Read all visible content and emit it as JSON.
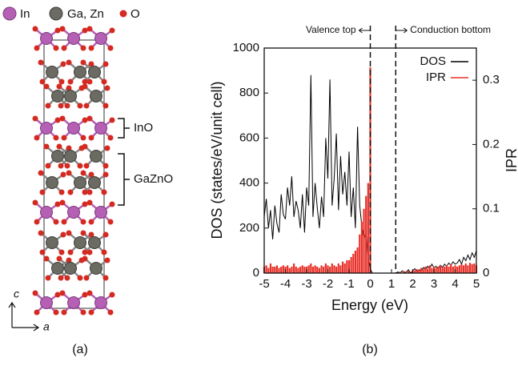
{
  "structure": {
    "legend": [
      "In",
      "Ga, Zn",
      "O"
    ],
    "labels": [
      "InO",
      "GaZnO"
    ],
    "axes": [
      "c",
      "a"
    ],
    "caption": "(a)"
  },
  "chart_data": {
    "type": "line",
    "caption": "(b)",
    "xlabel": "Energy (eV)",
    "ylabel": "DOS (states/eV/unit cell)",
    "y2label": "IPR",
    "x": [
      -5,
      -4.9,
      -4.8,
      -4.7,
      -4.6,
      -4.5,
      -4.4,
      -4.3,
      -4.2,
      -4.1,
      -4,
      -3.9,
      -3.8,
      -3.7,
      -3.6,
      -3.5,
      -3.4,
      -3.3,
      -3.2,
      -3.1,
      -3,
      -2.9,
      -2.8,
      -2.7,
      -2.6,
      -2.5,
      -2.4,
      -2.3,
      -2.2,
      -2.1,
      -2,
      -1.9,
      -1.8,
      -1.7,
      -1.6,
      -1.5,
      -1.4,
      -1.3,
      -1.2,
      -1.1,
      -1,
      -0.9,
      -0.8,
      -0.7,
      -0.6,
      -0.5,
      -0.4,
      -0.3,
      -0.2,
      -0.1,
      0,
      0.1,
      0.2,
      0.3,
      0.4,
      0.5,
      0.6,
      0.7,
      0.8,
      0.9,
      1,
      1.1,
      1.2,
      1.3,
      1.4,
      1.5,
      1.6,
      1.7,
      1.8,
      1.9,
      2,
      2.1,
      2.2,
      2.3,
      2.4,
      2.5,
      2.6,
      2.7,
      2.8,
      2.9,
      3,
      3.1,
      3.2,
      3.3,
      3.4,
      3.5,
      3.6,
      3.7,
      3.8,
      3.9,
      4,
      4.1,
      4.2,
      4.3,
      4.4,
      4.5,
      4.6,
      4.7,
      4.8,
      4.9,
      5
    ],
    "series": [
      {
        "name": "DOS",
        "color": "#000000",
        "values": [
          250,
          330,
          200,
          280,
          150,
          300,
          220,
          180,
          350,
          260,
          240,
          380,
          300,
          430,
          250,
          320,
          280,
          200,
          350,
          180,
          380,
          300,
          880,
          250,
          400,
          290,
          200,
          340,
          250,
          600,
          420,
          860,
          300,
          420,
          620,
          280,
          520,
          350,
          450,
          300,
          540,
          250,
          380,
          200,
          650,
          300,
          210,
          150,
          180,
          60,
          20,
          0,
          0,
          0,
          0,
          0,
          0,
          0,
          0,
          0,
          0,
          0,
          0,
          5,
          0,
          10,
          0,
          5,
          15,
          0,
          10,
          20,
          5,
          15,
          10,
          25,
          15,
          30,
          20,
          40,
          25,
          30,
          20,
          35,
          25,
          40,
          30,
          45,
          35,
          50,
          40,
          45,
          60,
          40,
          70,
          55,
          80,
          60,
          90,
          70,
          100
        ]
      },
      {
        "name": "IPR",
        "color": "#e8312a",
        "axis": "y2",
        "values": [
          0.01,
          0.012,
          0.008,
          0.015,
          0.01,
          0.01,
          0.012,
          0.008,
          0.01,
          0.012,
          0.01,
          0.012,
          0.008,
          0.01,
          0.015,
          0.01,
          0.008,
          0.01,
          0.012,
          0.01,
          0.01,
          0.012,
          0.015,
          0.01,
          0.012,
          0.01,
          0.008,
          0.012,
          0.01,
          0.015,
          0.012,
          0.01,
          0.015,
          0.012,
          0.01,
          0.015,
          0.012,
          0.018,
          0.015,
          0.02,
          0.02,
          0.025,
          0.03,
          0.035,
          0.04,
          0.06,
          0.08,
          0.1,
          0.12,
          0.14,
          0.32,
          0,
          0,
          0,
          0,
          0,
          0,
          0,
          0,
          0,
          0,
          0,
          0,
          0,
          0.002,
          0,
          0.003,
          0,
          0.004,
          0,
          0.005,
          0.004,
          0.006,
          0.005,
          0.008,
          0.006,
          0.01,
          0.007,
          0.012,
          0.008,
          0.01,
          0.008,
          0.01,
          0.012,
          0.008,
          0.01,
          0.012,
          0.01,
          0.014,
          0.01,
          0.012,
          0.01,
          0.012,
          0.014,
          0.012,
          0.015,
          0.012,
          0.016,
          0.014,
          0.015,
          0.012
        ]
      }
    ],
    "xlim": [
      -5,
      5
    ],
    "xticks": [
      -5,
      -4,
      -3,
      -2,
      -1,
      0,
      1,
      2,
      3,
      4,
      5
    ],
    "ylim": [
      0,
      1000
    ],
    "yticks": [
      0,
      200,
      400,
      600,
      800,
      1000
    ],
    "y2lim": [
      0,
      0.35
    ],
    "y2ticks": [
      0,
      0.1,
      0.2,
      0.3
    ],
    "vlines": [
      {
        "x": 0,
        "label": "Valence top"
      },
      {
        "x": 1.2,
        "label": "Conduction bottom"
      }
    ],
    "legend": "upper right"
  }
}
